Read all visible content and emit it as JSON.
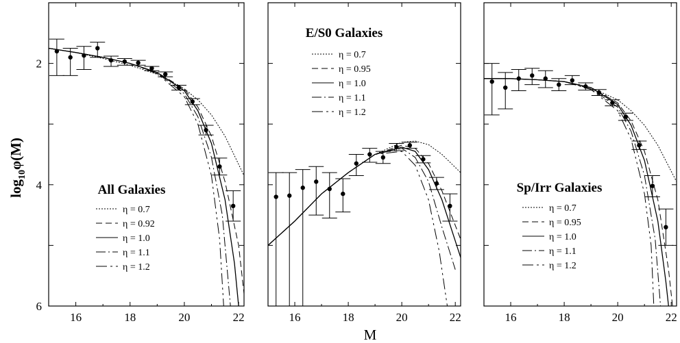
{
  "chart_data": {
    "type": "line",
    "ylabel_main": "log",
    "ylabel_sub": "10",
    "ylabel_tail": "φ(M)",
    "xlabel": "M",
    "xlim": [
      15,
      22.2
    ],
    "ylim_inverted": [
      1.0,
      6.0
    ],
    "xticks": [
      16,
      18,
      20,
      22
    ],
    "yticks": [
      2,
      4,
      6
    ],
    "yticks_inner_only": [
      3,
      5
    ],
    "panels": [
      {
        "title": "All Galaxies",
        "legend": [
          "η = 0.7",
          "η = 0.92",
          "η = 1.0",
          "η = 1.1",
          "η = 1.2"
        ],
        "points": [
          {
            "x": 15.3,
            "y": 1.8,
            "lo": 1.6,
            "hi": 2.2
          },
          {
            "x": 15.8,
            "y": 1.9,
            "lo": 1.75,
            "hi": 2.2
          },
          {
            "x": 16.3,
            "y": 1.87,
            "lo": 1.72,
            "hi": 2.1
          },
          {
            "x": 16.8,
            "y": 1.75,
            "lo": 1.65,
            "hi": 1.9
          },
          {
            "x": 17.3,
            "y": 1.95,
            "lo": 1.88,
            "hi": 2.05
          },
          {
            "x": 17.8,
            "y": 1.97,
            "lo": 1.92,
            "hi": 2.03
          },
          {
            "x": 18.3,
            "y": 1.99,
            "lo": 1.95,
            "hi": 2.03
          },
          {
            "x": 18.8,
            "y": 2.08,
            "lo": 2.05,
            "hi": 2.12
          },
          {
            "x": 19.3,
            "y": 2.18,
            "lo": 2.14,
            "hi": 2.22
          },
          {
            "x": 19.8,
            "y": 2.4,
            "lo": 2.36,
            "hi": 2.44
          },
          {
            "x": 20.3,
            "y": 2.63,
            "lo": 2.58,
            "hi": 2.68
          },
          {
            "x": 20.8,
            "y": 3.1,
            "lo": 3.02,
            "hi": 3.18
          },
          {
            "x": 21.3,
            "y": 3.7,
            "lo": 3.56,
            "hi": 3.84
          },
          {
            "x": 21.8,
            "y": 4.35,
            "lo": 4.1,
            "hi": 4.6
          }
        ],
        "curves": [
          {
            "eta": 0.7,
            "values": [
              [
                15,
                1.75
              ],
              [
                16,
                1.82
              ],
              [
                17,
                1.92
              ],
              [
                18,
                2.03
              ],
              [
                19,
                2.18
              ],
              [
                20,
                2.42
              ],
              [
                20.5,
                2.6
              ],
              [
                21,
                2.85
              ],
              [
                21.5,
                3.2
              ],
              [
                22.2,
                3.85
              ]
            ]
          },
          {
            "eta": 0.92,
            "values": [
              [
                15,
                1.75
              ],
              [
                16,
                1.82
              ],
              [
                17,
                1.9
              ],
              [
                18,
                2.0
              ],
              [
                19,
                2.15
              ],
              [
                20,
                2.42
              ],
              [
                20.5,
                2.72
              ],
              [
                21,
                3.2
              ],
              [
                21.5,
                3.95
              ],
              [
                22.0,
                5.0
              ],
              [
                22.25,
                6.0
              ]
            ]
          },
          {
            "eta": 1.0,
            "values": [
              [
                15,
                1.75
              ],
              [
                16,
                1.82
              ],
              [
                17,
                1.9
              ],
              [
                18,
                2.0
              ],
              [
                19,
                2.15
              ],
              [
                20,
                2.45
              ],
              [
                20.5,
                2.78
              ],
              [
                21,
                3.32
              ],
              [
                21.5,
                4.25
              ],
              [
                21.85,
                5.3
              ],
              [
                22.0,
                6.0
              ]
            ]
          },
          {
            "eta": 1.1,
            "values": [
              [
                15,
                1.75
              ],
              [
                16,
                1.82
              ],
              [
                17,
                1.9
              ],
              [
                18,
                2.0
              ],
              [
                19,
                2.16
              ],
              [
                20,
                2.5
              ],
              [
                20.5,
                2.88
              ],
              [
                21,
                3.55
              ],
              [
                21.4,
                4.5
              ],
              [
                21.7,
                6.0
              ]
            ]
          },
          {
            "eta": 1.2,
            "values": [
              [
                15,
                1.75
              ],
              [
                16,
                1.82
              ],
              [
                17,
                1.9
              ],
              [
                18,
                2.0
              ],
              [
                19,
                2.17
              ],
              [
                20,
                2.55
              ],
              [
                20.5,
                3.0
              ],
              [
                21,
                3.85
              ],
              [
                21.3,
                4.9
              ],
              [
                21.45,
                6.0
              ]
            ]
          }
        ]
      },
      {
        "title": "E/S0 Galaxies",
        "legend": [
          "η = 0.7",
          "η = 0.95",
          "η = 1.0",
          "η = 1.1",
          "η = 1.2"
        ],
        "points": [
          {
            "x": 15.3,
            "y": 4.2,
            "lo": 3.8,
            "hi": 6.0
          },
          {
            "x": 15.8,
            "y": 4.18,
            "lo": 3.8,
            "hi": 6.0
          },
          {
            "x": 16.3,
            "y": 4.05,
            "lo": 3.75,
            "hi": 6.0
          },
          {
            "x": 16.8,
            "y": 3.95,
            "lo": 3.7,
            "hi": 4.5
          },
          {
            "x": 17.3,
            "y": 4.07,
            "lo": 3.8,
            "hi": 4.55
          },
          {
            "x": 17.8,
            "y": 4.15,
            "lo": 3.9,
            "hi": 4.45
          },
          {
            "x": 18.3,
            "y": 3.65,
            "lo": 3.5,
            "hi": 3.85
          },
          {
            "x": 18.8,
            "y": 3.5,
            "lo": 3.4,
            "hi": 3.63
          },
          {
            "x": 19.3,
            "y": 3.55,
            "lo": 3.45,
            "hi": 3.65
          },
          {
            "x": 19.8,
            "y": 3.38,
            "lo": 3.32,
            "hi": 3.44
          },
          {
            "x": 20.3,
            "y": 3.35,
            "lo": 3.3,
            "hi": 3.4
          },
          {
            "x": 20.8,
            "y": 3.58,
            "lo": 3.52,
            "hi": 3.64
          },
          {
            "x": 21.3,
            "y": 3.98,
            "lo": 3.88,
            "hi": 4.08
          },
          {
            "x": 21.8,
            "y": 4.35,
            "lo": 4.15,
            "hi": 4.6
          }
        ],
        "curves": [
          {
            "eta": 0.7,
            "values": [
              [
                15,
                5.0
              ],
              [
                16,
                4.6
              ],
              [
                17,
                4.15
              ],
              [
                18,
                3.8
              ],
              [
                19,
                3.5
              ],
              [
                20,
                3.3
              ],
              [
                20.5,
                3.28
              ],
              [
                21,
                3.34
              ],
              [
                21.5,
                3.5
              ],
              [
                22.2,
                3.8
              ]
            ]
          },
          {
            "eta": 0.95,
            "values": [
              [
                15,
                5.0
              ],
              [
                16,
                4.6
              ],
              [
                17,
                4.15
              ],
              [
                18,
                3.8
              ],
              [
                19,
                3.5
              ],
              [
                20,
                3.35
              ],
              [
                20.5,
                3.4
              ],
              [
                21,
                3.65
              ],
              [
                21.5,
                4.1
              ],
              [
                22.2,
                4.9
              ]
            ]
          },
          {
            "eta": 1.0,
            "values": [
              [
                15,
                5.0
              ],
              [
                16,
                4.6
              ],
              [
                17,
                4.15
              ],
              [
                18,
                3.8
              ],
              [
                19,
                3.5
              ],
              [
                20,
                3.38
              ],
              [
                20.5,
                3.45
              ],
              [
                21,
                3.75
              ],
              [
                21.5,
                4.25
              ],
              [
                22.2,
                5.2
              ]
            ]
          },
          {
            "eta": 1.1,
            "values": [
              [
                15,
                5.0
              ],
              [
                16,
                4.6
              ],
              [
                17,
                4.15
              ],
              [
                18,
                3.8
              ],
              [
                19,
                3.5
              ],
              [
                20,
                3.4
              ],
              [
                20.5,
                3.55
              ],
              [
                21,
                3.95
              ],
              [
                21.5,
                4.7
              ],
              [
                22.0,
                5.4
              ]
            ]
          },
          {
            "eta": 1.2,
            "values": [
              [
                15,
                5.0
              ],
              [
                16,
                4.6
              ],
              [
                17,
                4.15
              ],
              [
                18,
                3.8
              ],
              [
                19,
                3.5
              ],
              [
                20,
                3.45
              ],
              [
                20.5,
                3.68
              ],
              [
                21,
                4.25
              ],
              [
                21.4,
                5.1
              ],
              [
                21.7,
                6.0
              ]
            ]
          }
        ]
      },
      {
        "title": "Sp/Irr Galaxies",
        "legend": [
          "η = 0.7",
          "η = 0.95",
          "η = 1.0",
          "η = 1.1",
          "η = 1.2"
        ],
        "points": [
          {
            "x": 15.3,
            "y": 2.3,
            "lo": 2.0,
            "hi": 2.85
          },
          {
            "x": 15.8,
            "y": 2.4,
            "lo": 2.15,
            "hi": 2.75
          },
          {
            "x": 16.3,
            "y": 2.25,
            "lo": 2.1,
            "hi": 2.45
          },
          {
            "x": 16.8,
            "y": 2.2,
            "lo": 2.08,
            "hi": 2.35
          },
          {
            "x": 17.3,
            "y": 2.25,
            "lo": 2.12,
            "hi": 2.4
          },
          {
            "x": 17.8,
            "y": 2.35,
            "lo": 2.25,
            "hi": 2.45
          },
          {
            "x": 18.3,
            "y": 2.28,
            "lo": 2.2,
            "hi": 2.35
          },
          {
            "x": 18.8,
            "y": 2.38,
            "lo": 2.32,
            "hi": 2.44
          },
          {
            "x": 19.3,
            "y": 2.48,
            "lo": 2.43,
            "hi": 2.53
          },
          {
            "x": 19.8,
            "y": 2.65,
            "lo": 2.6,
            "hi": 2.7
          },
          {
            "x": 20.3,
            "y": 2.88,
            "lo": 2.82,
            "hi": 2.94
          },
          {
            "x": 20.8,
            "y": 3.35,
            "lo": 3.28,
            "hi": 3.42
          },
          {
            "x": 21.3,
            "y": 4.02,
            "lo": 3.85,
            "hi": 4.2
          },
          {
            "x": 21.8,
            "y": 4.7,
            "lo": 4.4,
            "hi": 5.0
          }
        ],
        "curves": [
          {
            "eta": 0.7,
            "values": [
              [
                15,
                2.25
              ],
              [
                16,
                2.25
              ],
              [
                17,
                2.27
              ],
              [
                18,
                2.3
              ],
              [
                19,
                2.4
              ],
              [
                20,
                2.6
              ],
              [
                20.5,
                2.78
              ],
              [
                21,
                3.02
              ],
              [
                21.5,
                3.35
              ],
              [
                22.2,
                3.95
              ]
            ]
          },
          {
            "eta": 0.95,
            "values": [
              [
                15,
                2.25
              ],
              [
                16,
                2.25
              ],
              [
                17,
                2.27
              ],
              [
                18,
                2.3
              ],
              [
                19,
                2.4
              ],
              [
                20,
                2.65
              ],
              [
                20.5,
                2.95
              ],
              [
                21,
                3.45
              ],
              [
                21.5,
                4.25
              ],
              [
                21.9,
                5.4
              ],
              [
                22.05,
                6.0
              ]
            ]
          },
          {
            "eta": 1.0,
            "values": [
              [
                15,
                2.25
              ],
              [
                16,
                2.25
              ],
              [
                17,
                2.27
              ],
              [
                18,
                2.3
              ],
              [
                19,
                2.4
              ],
              [
                20,
                2.68
              ],
              [
                20.5,
                3.02
              ],
              [
                21,
                3.6
              ],
              [
                21.5,
                4.6
              ],
              [
                21.8,
                5.6
              ],
              [
                21.9,
                6.0
              ]
            ]
          },
          {
            "eta": 1.1,
            "values": [
              [
                15,
                2.25
              ],
              [
                16,
                2.25
              ],
              [
                17,
                2.27
              ],
              [
                18,
                2.3
              ],
              [
                19,
                2.42
              ],
              [
                20,
                2.72
              ],
              [
                20.5,
                3.12
              ],
              [
                21,
                3.85
              ],
              [
                21.4,
                4.9
              ],
              [
                21.6,
                6.0
              ]
            ]
          },
          {
            "eta": 1.2,
            "values": [
              [
                15,
                2.25
              ],
              [
                16,
                2.25
              ],
              [
                17,
                2.27
              ],
              [
                18,
                2.3
              ],
              [
                19,
                2.43
              ],
              [
                20,
                2.78
              ],
              [
                20.5,
                3.25
              ],
              [
                21,
                4.15
              ],
              [
                21.25,
                5.0
              ],
              [
                21.35,
                6.0
              ]
            ]
          }
        ]
      }
    ]
  }
}
